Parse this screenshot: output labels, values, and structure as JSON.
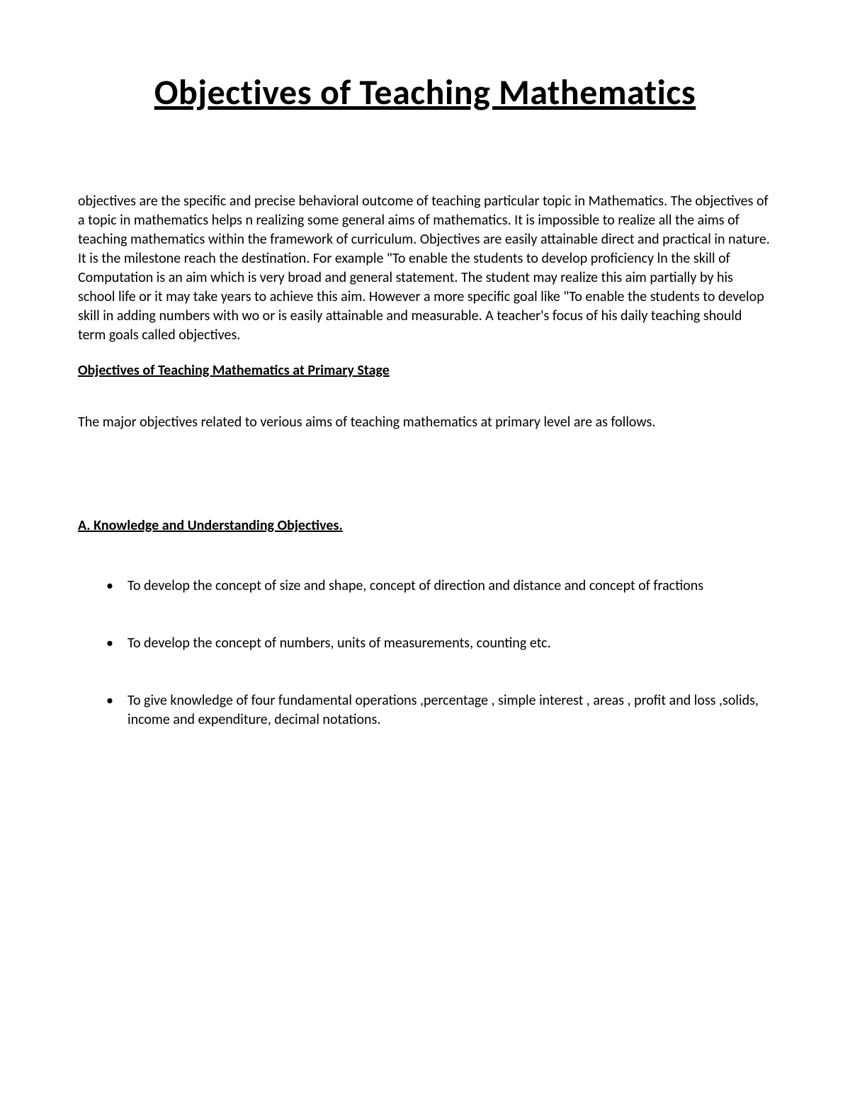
{
  "title": "Objectives of Teaching Mathematics",
  "intro_paragraph": "objectives are the specific and precise behavioral outcome of teaching particular topic in Mathematics. The objectives of a topic in mathematics helps n realizing some general aims of mathematics. It is impossible to realize all the aims of teaching mathematics within the framework of curriculum. Objectives are easily attainable direct and practical in nature. It is the milestone reach the destination. For example \"To enable the students to develop proficiency ln the skill of Computation is an aim which is very broad and general statement. The student may realize this aim partially by his school life or it may take years to achieve this aim.  However a more specific goal like \"To enable the students to develop skill in adding numbers with wo or is easily attainable and measurable. A teacher's focus of his daily teaching should term goals called objectives.",
  "subheading": "Objectives of Teaching Mathematics at Primary Stage",
  "intro_line": "The major objectives related to verious aims of teaching mathematics at primary level are as follows.",
  "section_a": {
    "heading": "A. Knowledge and Understanding Objectives.",
    "bullets": [
      "To develop the concept of size and shape, concept of direction and distance and concept of fractions",
      "To develop the concept of numbers, units of measurements, counting etc.",
      "To give knowledge of four fundamental operations ,percentage , simple interest , areas , profit and loss ,solids, income and expenditure, decimal notations."
    ]
  },
  "styles": {
    "background_color": "#ffffff",
    "text_color": "#000000",
    "title_fontsize": 50,
    "body_fontsize": 20,
    "font_family": "Calibri, Arial, sans-serif"
  }
}
